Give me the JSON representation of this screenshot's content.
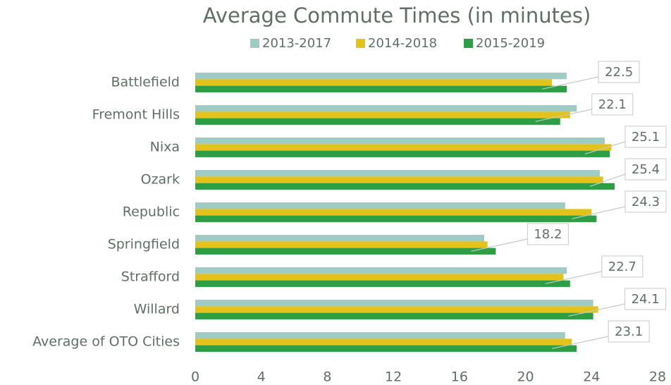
{
  "chart_data": {
    "type": "bar",
    "orientation": "horizontal",
    "title": "Average Commute Times (in minutes)",
    "categories": [
      "Battlefield",
      "Fremont Hills",
      "Nixa",
      "Ozark",
      "Republic",
      "Springfield",
      "Strafford",
      "Willard",
      "Average of OTO Cities"
    ],
    "series": [
      {
        "name": "2013-2017",
        "color": "#9ecbc4",
        "values": [
          22.5,
          23.1,
          24.8,
          24.5,
          22.4,
          17.5,
          22.5,
          24.1,
          22.4
        ]
      },
      {
        "name": "2014-2018",
        "color": "#e3c21b",
        "values": [
          21.6,
          22.7,
          25.2,
          24.7,
          24.0,
          17.7,
          22.3,
          24.4,
          22.8
        ]
      },
      {
        "name": "2015-2019",
        "color": "#2e9e45",
        "values": [
          22.5,
          22.1,
          25.1,
          25.4,
          24.3,
          18.2,
          22.7,
          24.1,
          23.1
        ]
      }
    ],
    "data_labels_series": 2,
    "xlim": [
      0,
      28
    ],
    "xticks": [
      0,
      4,
      8,
      12,
      16,
      20,
      24,
      28
    ],
    "grid": false,
    "legend": "top"
  }
}
